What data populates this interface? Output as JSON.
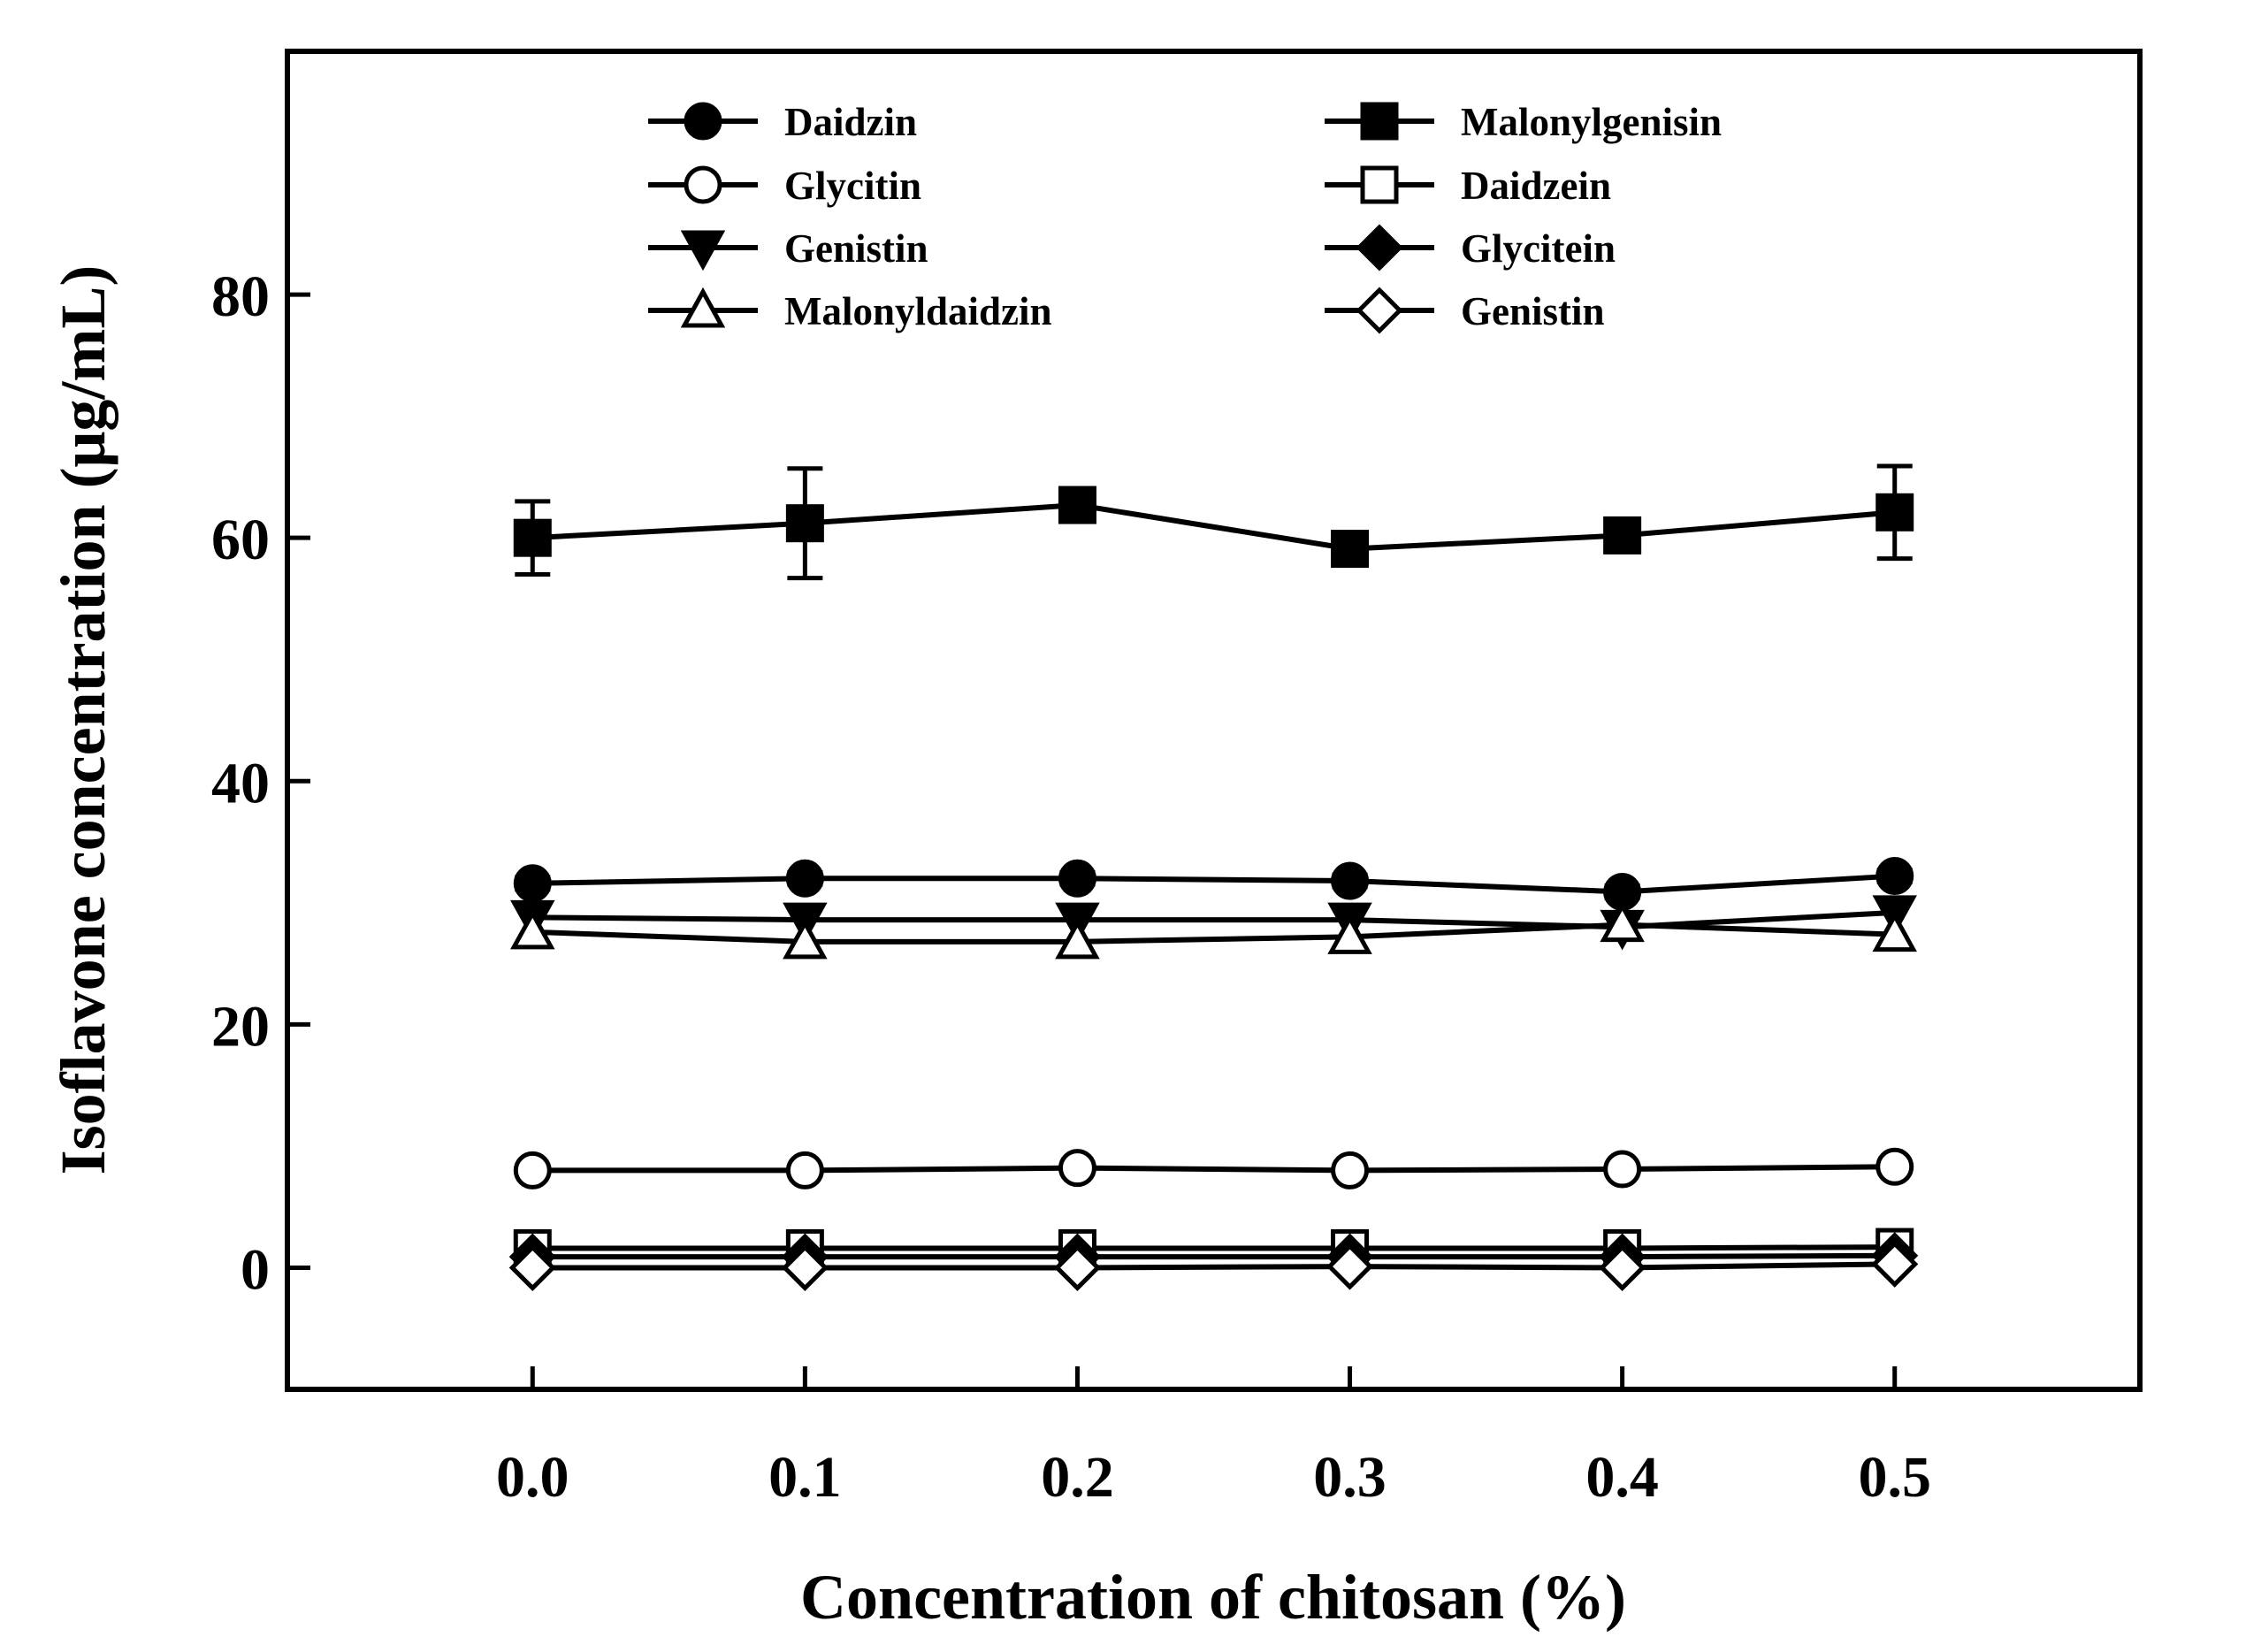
{
  "chart_data": {
    "type": "line",
    "title": "",
    "xlabel": "Concentration of chitosan (%)",
    "ylabel": "Isoflavone concentration (μg/mL)",
    "x": [
      0.0,
      0.1,
      0.2,
      0.3,
      0.4,
      0.5
    ],
    "x_tick_labels": [
      "0.0",
      "0.1",
      "0.2",
      "0.3",
      "0.4",
      "0.5"
    ],
    "xlim": [
      -0.09,
      0.59
    ],
    "ylim": [
      -10,
      100
    ],
    "y_ticks": [
      0,
      20,
      40,
      60,
      80
    ],
    "y_tick_labels": [
      "0",
      "20",
      "40",
      "60",
      "80"
    ],
    "grid": false,
    "legend_position": "top",
    "series": [
      {
        "name": "Daidzin",
        "marker": "circle",
        "fill": "#000000",
        "values": [
          31.6,
          32.0,
          32.0,
          31.8,
          30.9,
          32.2
        ],
        "errors": [
          0.5,
          0.5,
          0.5,
          0.5,
          0.5,
          0.5
        ]
      },
      {
        "name": "Glycitin",
        "marker": "circle",
        "fill": "#ffffff",
        "values": [
          8.0,
          8.0,
          8.2,
          8.0,
          8.1,
          8.3
        ],
        "errors": [
          0.3,
          0.3,
          0.3,
          0.3,
          0.3,
          0.3
        ]
      },
      {
        "name": "Genistin",
        "marker": "triangle-down",
        "fill": "#000000",
        "values": [
          28.8,
          28.6,
          28.6,
          28.6,
          28.0,
          29.2
        ],
        "errors": [
          0.4,
          0.4,
          0.4,
          0.4,
          0.8,
          0.4
        ]
      },
      {
        "name": "Malonyldaidzin",
        "marker": "triangle-up",
        "fill": "#ffffff",
        "values": [
          27.6,
          26.8,
          26.8,
          27.2,
          28.2,
          27.4
        ],
        "errors": [
          0.4,
          0.4,
          0.4,
          0.4,
          0.4,
          0.4
        ]
      },
      {
        "name": "Malonylgenisin",
        "marker": "square",
        "fill": "#000000",
        "values": [
          60.0,
          61.2,
          62.7,
          59.1,
          60.2,
          62.1
        ],
        "errors": [
          3.0,
          4.5,
          0.8,
          0.6,
          0.6,
          3.8
        ]
      },
      {
        "name": "Daidzein",
        "marker": "square",
        "fill": "#ffffff",
        "values": [
          1.6,
          1.6,
          1.6,
          1.6,
          1.6,
          1.7
        ],
        "errors": [
          0.2,
          0.2,
          0.2,
          0.2,
          0.2,
          0.2
        ]
      },
      {
        "name": "Glycitein",
        "marker": "diamond",
        "fill": "#000000",
        "values": [
          0.9,
          0.9,
          0.9,
          0.9,
          0.9,
          1.0
        ],
        "errors": [
          0.2,
          0.2,
          0.2,
          0.2,
          0.2,
          0.2
        ]
      },
      {
        "name": "Genistin",
        "marker": "diamond",
        "fill": "#ffffff",
        "values": [
          0.0,
          0.0,
          0.0,
          0.1,
          0.0,
          0.3
        ],
        "errors": [
          0.2,
          0.2,
          0.2,
          0.2,
          0.2,
          0.2
        ]
      }
    ]
  }
}
